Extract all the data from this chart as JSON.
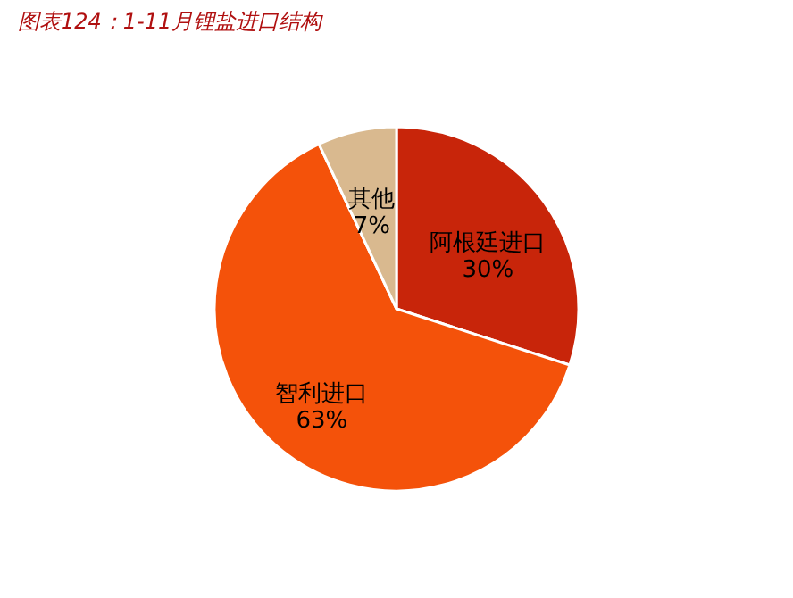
{
  "chart_data": {
    "type": "pie",
    "title": "图表124：1-11月锂盐进口结构",
    "categories": [
      "阿根廷进口",
      "智利进口",
      "其他"
    ],
    "values": [
      30,
      63,
      7
    ],
    "value_labels": [
      "30%",
      "63%",
      "7%"
    ],
    "colors": [
      "#c8250a",
      "#f4520a",
      "#d9b98f"
    ],
    "legend": false
  }
}
